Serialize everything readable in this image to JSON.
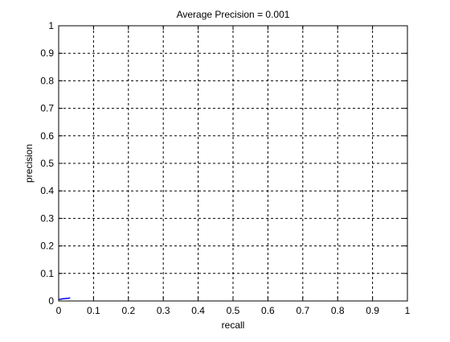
{
  "chart_data": {
    "type": "line",
    "title": "Average Precision = 0.001",
    "xlabel": "recall",
    "ylabel": "precision",
    "xlim": [
      0,
      1
    ],
    "ylim": [
      0,
      1
    ],
    "grid": true,
    "x_ticks": [
      "0",
      "0.1",
      "0.2",
      "0.3",
      "0.4",
      "0.5",
      "0.6",
      "0.7",
      "0.8",
      "0.9",
      "1"
    ],
    "y_ticks": [
      "0",
      "0.1",
      "0.2",
      "0.3",
      "0.4",
      "0.5",
      "0.6",
      "0.7",
      "0.8",
      "0.9",
      "1"
    ],
    "series": [
      {
        "color": "#0000ff",
        "x": [
          0.0,
          0.004,
          0.008,
          0.012,
          0.016,
          0.02,
          0.024,
          0.028,
          0.032
        ],
        "y": [
          0.005,
          0.006,
          0.007,
          0.008,
          0.008,
          0.009,
          0.009,
          0.01,
          0.011
        ]
      }
    ]
  }
}
